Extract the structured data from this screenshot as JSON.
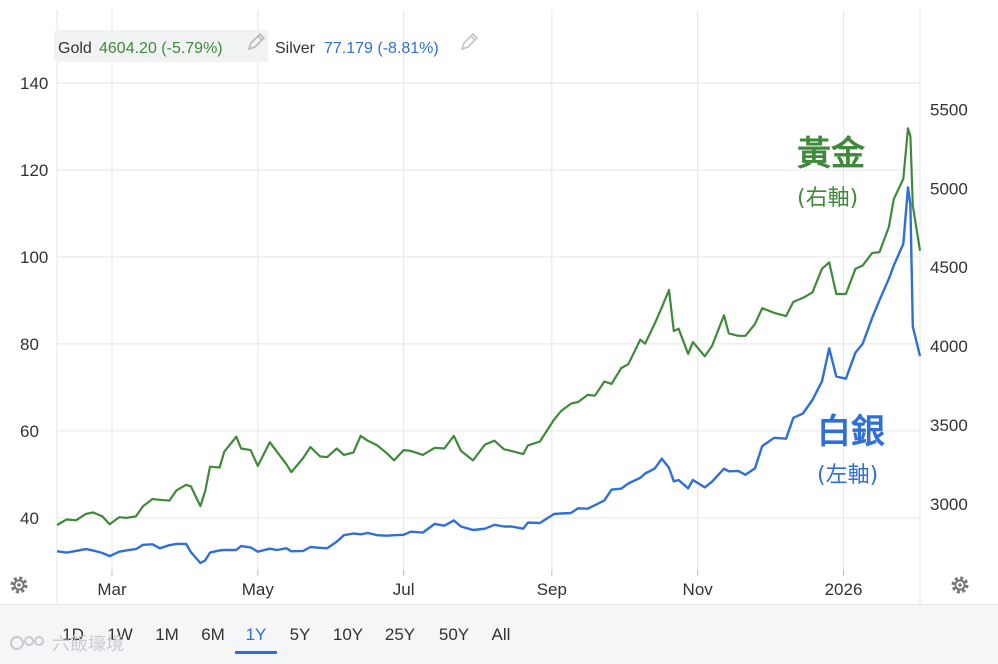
{
  "legend": {
    "gold_name": "Gold",
    "gold_value": "4604.20 (-5.79%)",
    "silver_name": "Silver",
    "silver_value": "77.179 (-8.81%)"
  },
  "annotations": {
    "gold_title": "黃金",
    "gold_axis_note": "(右軸)",
    "silver_title": "白銀",
    "silver_axis_note": "(左軸)"
  },
  "toolbar": {
    "ranges": [
      "1D",
      "1W",
      "1M",
      "6M",
      "1Y",
      "5Y",
      "10Y",
      "25Y",
      "50Y",
      "All"
    ],
    "active": "1Y"
  },
  "watermark": {
    "text": "六飯壕境"
  },
  "colors": {
    "gold": "#3f8a3a",
    "silver": "#2f6fd6",
    "grid": "#e6e6e6"
  },
  "icons": {
    "left_gear": "gear-icon",
    "right_gear": "gear-icon",
    "edit": "pencil-icon"
  },
  "chart_data": {
    "type": "line",
    "x_ticks": [
      "Mar",
      "May",
      "Jul",
      "Sep",
      "Nov",
      "2026"
    ],
    "y_left": {
      "ticks": [
        40,
        60,
        80,
        100,
        120,
        140
      ],
      "range": [
        28,
        143
      ]
    },
    "y_right": {
      "ticks": [
        3000,
        3500,
        4000,
        4500,
        5000,
        5500
      ],
      "range": [
        2580,
        5750
      ]
    },
    "x_range": [
      "2025-02-06",
      "2026-02-02"
    ],
    "grid": true,
    "series": [
      {
        "name": "Gold",
        "axis": "right",
        "points": [
          [
            "2025-02-06",
            2865
          ],
          [
            "2025-02-10",
            2900
          ],
          [
            "2025-02-14",
            2895
          ],
          [
            "2025-02-18",
            2935
          ],
          [
            "2025-02-21",
            2945
          ],
          [
            "2025-02-25",
            2920
          ],
          [
            "2025-02-28",
            2870
          ],
          [
            "2025-03-04",
            2915
          ],
          [
            "2025-03-07",
            2910
          ],
          [
            "2025-03-11",
            2920
          ],
          [
            "2025-03-14",
            2985
          ],
          [
            "2025-03-18",
            3030
          ],
          [
            "2025-03-21",
            3025
          ],
          [
            "2025-03-25",
            3020
          ],
          [
            "2025-03-28",
            3085
          ],
          [
            "2025-04-01",
            3120
          ],
          [
            "2025-04-03",
            3110
          ],
          [
            "2025-04-07",
            2985
          ],
          [
            "2025-04-09",
            3080
          ],
          [
            "2025-04-11",
            3235
          ],
          [
            "2025-04-15",
            3230
          ],
          [
            "2025-04-17",
            3330
          ],
          [
            "2025-04-22",
            3425
          ],
          [
            "2025-04-24",
            3350
          ],
          [
            "2025-04-28",
            3340
          ],
          [
            "2025-05-01",
            3240
          ],
          [
            "2025-05-06",
            3390
          ],
          [
            "2025-05-09",
            3330
          ],
          [
            "2025-05-13",
            3250
          ],
          [
            "2025-05-15",
            3200
          ],
          [
            "2025-05-20",
            3290
          ],
          [
            "2025-05-23",
            3360
          ],
          [
            "2025-05-27",
            3300
          ],
          [
            "2025-05-30",
            3295
          ],
          [
            "2025-06-03",
            3350
          ],
          [
            "2025-06-06",
            3310
          ],
          [
            "2025-06-10",
            3325
          ],
          [
            "2025-06-13",
            3430
          ],
          [
            "2025-06-16",
            3400
          ],
          [
            "2025-06-20",
            3370
          ],
          [
            "2025-06-24",
            3320
          ],
          [
            "2025-06-27",
            3275
          ],
          [
            "2025-07-01",
            3340
          ],
          [
            "2025-07-04",
            3335
          ],
          [
            "2025-07-09",
            3310
          ],
          [
            "2025-07-14",
            3355
          ],
          [
            "2025-07-18",
            3350
          ],
          [
            "2025-07-22",
            3430
          ],
          [
            "2025-07-25",
            3335
          ],
          [
            "2025-07-30",
            3275
          ],
          [
            "2025-08-04",
            3375
          ],
          [
            "2025-08-08",
            3400
          ],
          [
            "2025-08-12",
            3345
          ],
          [
            "2025-08-15",
            3335
          ],
          [
            "2025-08-20",
            3315
          ],
          [
            "2025-08-22",
            3370
          ],
          [
            "2025-08-27",
            3395
          ],
          [
            "2025-09-02",
            3535
          ],
          [
            "2025-09-05",
            3590
          ],
          [
            "2025-09-09",
            3635
          ],
          [
            "2025-09-12",
            3645
          ],
          [
            "2025-09-16",
            3690
          ],
          [
            "2025-09-19",
            3685
          ],
          [
            "2025-09-23",
            3775
          ],
          [
            "2025-09-26",
            3760
          ],
          [
            "2025-09-30",
            3860
          ],
          [
            "2025-10-03",
            3885
          ],
          [
            "2025-10-08",
            4040
          ],
          [
            "2025-10-10",
            4015
          ],
          [
            "2025-10-14",
            4140
          ],
          [
            "2025-10-17",
            4245
          ],
          [
            "2025-10-20",
            4355
          ],
          [
            "2025-10-22",
            4095
          ],
          [
            "2025-10-24",
            4110
          ],
          [
            "2025-10-28",
            3950
          ],
          [
            "2025-10-30",
            4025
          ],
          [
            "2025-11-04",
            3935
          ],
          [
            "2025-11-07",
            4000
          ],
          [
            "2025-11-12",
            4195
          ],
          [
            "2025-11-14",
            4080
          ],
          [
            "2025-11-18",
            4065
          ],
          [
            "2025-11-21",
            4065
          ],
          [
            "2025-11-25",
            4140
          ],
          [
            "2025-11-28",
            4240
          ],
          [
            "2025-12-03",
            4210
          ],
          [
            "2025-12-08",
            4190
          ],
          [
            "2025-12-11",
            4280
          ],
          [
            "2025-12-15",
            4305
          ],
          [
            "2025-12-19",
            4340
          ],
          [
            "2025-12-23",
            4490
          ],
          [
            "2025-12-26",
            4530
          ],
          [
            "2025-12-29",
            4330
          ],
          [
            "2026-01-02",
            4330
          ],
          [
            "2026-01-06",
            4490
          ],
          [
            "2026-01-09",
            4510
          ],
          [
            "2026-01-13",
            4590
          ],
          [
            "2026-01-16",
            4595
          ],
          [
            "2026-01-20",
            4755
          ],
          [
            "2026-01-22",
            4930
          ],
          [
            "2026-01-26",
            5060
          ],
          [
            "2026-01-28",
            5380
          ],
          [
            "2026-01-29",
            5330
          ],
          [
            "2026-01-30",
            4890
          ],
          [
            "2026-02-02",
            4604
          ]
        ]
      },
      {
        "name": "Silver",
        "axis": "left",
        "points": [
          [
            "2025-02-06",
            32.3
          ],
          [
            "2025-02-10",
            32.0
          ],
          [
            "2025-02-14",
            32.4
          ],
          [
            "2025-02-18",
            32.8
          ],
          [
            "2025-02-21",
            32.5
          ],
          [
            "2025-02-25",
            31.9
          ],
          [
            "2025-02-28",
            31.2
          ],
          [
            "2025-03-04",
            32.2
          ],
          [
            "2025-03-07",
            32.5
          ],
          [
            "2025-03-11",
            32.8
          ],
          [
            "2025-03-14",
            33.8
          ],
          [
            "2025-03-18",
            33.9
          ],
          [
            "2025-03-21",
            33.0
          ],
          [
            "2025-03-25",
            33.7
          ],
          [
            "2025-03-28",
            34.0
          ],
          [
            "2025-04-01",
            34.0
          ],
          [
            "2025-04-03",
            32.1
          ],
          [
            "2025-04-07",
            29.6
          ],
          [
            "2025-04-09",
            30.2
          ],
          [
            "2025-04-11",
            32.0
          ],
          [
            "2025-04-15",
            32.5
          ],
          [
            "2025-04-17",
            32.6
          ],
          [
            "2025-04-22",
            32.6
          ],
          [
            "2025-04-24",
            33.5
          ],
          [
            "2025-04-28",
            33.2
          ],
          [
            "2025-05-01",
            32.2
          ],
          [
            "2025-05-06",
            32.9
          ],
          [
            "2025-05-09",
            32.6
          ],
          [
            "2025-05-13",
            33.0
          ],
          [
            "2025-05-15",
            32.3
          ],
          [
            "2025-05-20",
            32.4
          ],
          [
            "2025-05-23",
            33.3
          ],
          [
            "2025-05-27",
            33.1
          ],
          [
            "2025-05-30",
            33.0
          ],
          [
            "2025-06-03",
            34.5
          ],
          [
            "2025-06-06",
            36.0
          ],
          [
            "2025-06-10",
            36.4
          ],
          [
            "2025-06-13",
            36.2
          ],
          [
            "2025-06-16",
            36.5
          ],
          [
            "2025-06-20",
            36.0
          ],
          [
            "2025-06-24",
            35.9
          ],
          [
            "2025-06-27",
            36.0
          ],
          [
            "2025-07-01",
            36.1
          ],
          [
            "2025-07-04",
            36.8
          ],
          [
            "2025-07-09",
            36.6
          ],
          [
            "2025-07-14",
            38.6
          ],
          [
            "2025-07-18",
            38.2
          ],
          [
            "2025-07-22",
            39.4
          ],
          [
            "2025-07-25",
            38.0
          ],
          [
            "2025-07-30",
            37.2
          ],
          [
            "2025-08-04",
            37.5
          ],
          [
            "2025-08-08",
            38.4
          ],
          [
            "2025-08-12",
            38.0
          ],
          [
            "2025-08-15",
            38.0
          ],
          [
            "2025-08-20",
            37.5
          ],
          [
            "2025-08-22",
            38.9
          ],
          [
            "2025-08-27",
            38.8
          ],
          [
            "2025-09-02",
            40.9
          ],
          [
            "2025-09-05",
            41.0
          ],
          [
            "2025-09-09",
            41.1
          ],
          [
            "2025-09-12",
            42.2
          ],
          [
            "2025-09-16",
            42.1
          ],
          [
            "2025-09-19",
            42.9
          ],
          [
            "2025-09-23",
            44.0
          ],
          [
            "2025-09-26",
            46.5
          ],
          [
            "2025-09-30",
            46.7
          ],
          [
            "2025-10-03",
            47.9
          ],
          [
            "2025-10-08",
            49.2
          ],
          [
            "2025-10-10",
            50.2
          ],
          [
            "2025-10-14",
            51.3
          ],
          [
            "2025-10-17",
            53.6
          ],
          [
            "2025-10-20",
            51.5
          ],
          [
            "2025-10-22",
            48.4
          ],
          [
            "2025-10-24",
            48.7
          ],
          [
            "2025-10-28",
            46.8
          ],
          [
            "2025-10-30",
            48.7
          ],
          [
            "2025-11-04",
            47.0
          ],
          [
            "2025-11-07",
            48.3
          ],
          [
            "2025-11-12",
            51.3
          ],
          [
            "2025-11-14",
            50.7
          ],
          [
            "2025-11-18",
            50.8
          ],
          [
            "2025-11-21",
            49.9
          ],
          [
            "2025-11-25",
            51.4
          ],
          [
            "2025-11-28",
            56.5
          ],
          [
            "2025-12-03",
            58.4
          ],
          [
            "2025-12-08",
            58.2
          ],
          [
            "2025-12-11",
            63.0
          ],
          [
            "2025-12-15",
            64.0
          ],
          [
            "2025-12-19",
            67.1
          ],
          [
            "2025-12-23",
            71.4
          ],
          [
            "2025-12-26",
            79.0
          ],
          [
            "2025-12-29",
            72.5
          ],
          [
            "2026-01-02",
            72.0
          ],
          [
            "2026-01-06",
            78.0
          ],
          [
            "2026-01-09",
            80.0
          ],
          [
            "2026-01-13",
            86.0
          ],
          [
            "2026-01-16",
            90.0
          ],
          [
            "2026-01-20",
            95.0
          ],
          [
            "2026-01-22",
            98.0
          ],
          [
            "2026-01-26",
            103.0
          ],
          [
            "2026-01-28",
            116.0
          ],
          [
            "2026-01-29",
            112.0
          ],
          [
            "2026-01-30",
            84.0
          ],
          [
            "2026-02-02",
            77.2
          ]
        ]
      }
    ]
  }
}
